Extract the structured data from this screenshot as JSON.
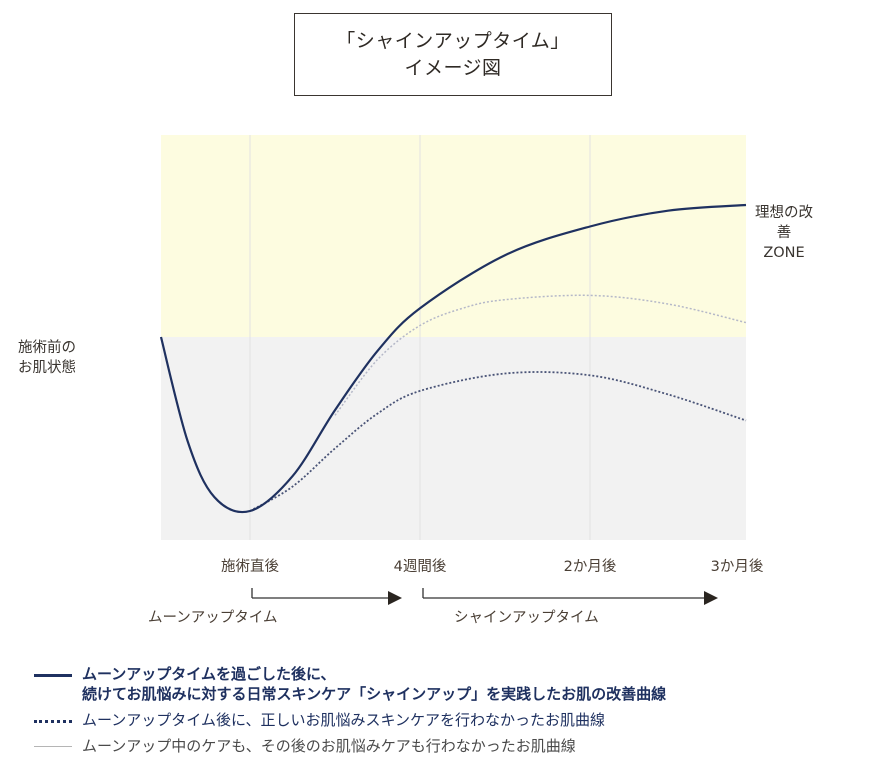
{
  "title": {
    "line1": "「シャインアップタイム」",
    "line2": "イメージ図"
  },
  "chart_data": {
    "type": "line",
    "y_label": [
      "施術前の",
      "お肌状態"
    ],
    "zone_label": [
      "理想の改善",
      "ZONE"
    ],
    "x_ticks": [
      "施術直後",
      "4週間後",
      "2か月後",
      "3か月後"
    ],
    "phases": [
      {
        "label": "ムーンアップタイム"
      },
      {
        "label": "シャインアップタイム"
      }
    ],
    "colors": {
      "zone": "#fdfce0",
      "baseline_area": "#f2f2f2",
      "primary": "#1f3160",
      "dotted": "#4a5477",
      "gray": "#b5b8c8",
      "grid": "#e2e2e2"
    },
    "baseline": 0,
    "ylim": [
      -1.05,
      1.2
    ],
    "ideal_zone": [
      0,
      1.2
    ],
    "series": [
      {
        "name": "ムーンアップタイムを過ごした後に、続けてお肌悩みに対する日常スキンケア「シャインアップ」を実践したお肌の改善曲線",
        "style": "solid",
        "points": [
          [
            -0.5,
            0
          ],
          [
            -0.35,
            -0.6
          ],
          [
            -0.2,
            -0.92
          ],
          [
            0,
            -1
          ],
          [
            0.25,
            -0.8
          ],
          [
            0.5,
            -0.42
          ],
          [
            0.75,
            -0.08
          ],
          [
            1,
            0.2
          ],
          [
            1.5,
            0.57
          ],
          [
            2,
            0.77
          ],
          [
            2.5,
            0.88
          ],
          [
            3,
            0.92
          ]
        ]
      },
      {
        "name": "ムーンアップタイム後に、正しいお肌悩みスキンケアを行わなかったお肌曲線",
        "style": "dotted",
        "points": [
          [
            0,
            -1
          ],
          [
            0.25,
            -0.86
          ],
          [
            0.5,
            -0.64
          ],
          [
            0.75,
            -0.44
          ],
          [
            1,
            -0.31
          ],
          [
            1.5,
            -0.21
          ],
          [
            2,
            -0.22
          ],
          [
            2.5,
            -0.33
          ],
          [
            3,
            -0.48
          ]
        ]
      },
      {
        "name": "ムーンアップ中のケアも、その後のお肌悩みケアも行わなかったお肌曲線",
        "style": "gray-dotted",
        "points": [
          [
            0.5,
            -0.45
          ],
          [
            0.75,
            -0.13
          ],
          [
            1,
            0.08
          ],
          [
            1.25,
            0.2
          ],
          [
            1.5,
            0.26
          ],
          [
            2,
            0.29
          ],
          [
            2.5,
            0.23
          ],
          [
            3,
            0.1
          ]
        ]
      }
    ]
  },
  "legend": [
    {
      "line1": "ムーンアップタイムを過ごした後に、",
      "line2": "続けてお肌悩みに対する日常スキンケア「シャインアップ」を実践したお肌の改善曲線"
    },
    {
      "line1": "ムーンアップタイム後に、正しいお肌悩みスキンケアを行わなかったお肌曲線"
    },
    {
      "line1": "ムーンアップ中のケアも、その後のお肌悩みケアも行わなかったお肌曲線"
    }
  ]
}
